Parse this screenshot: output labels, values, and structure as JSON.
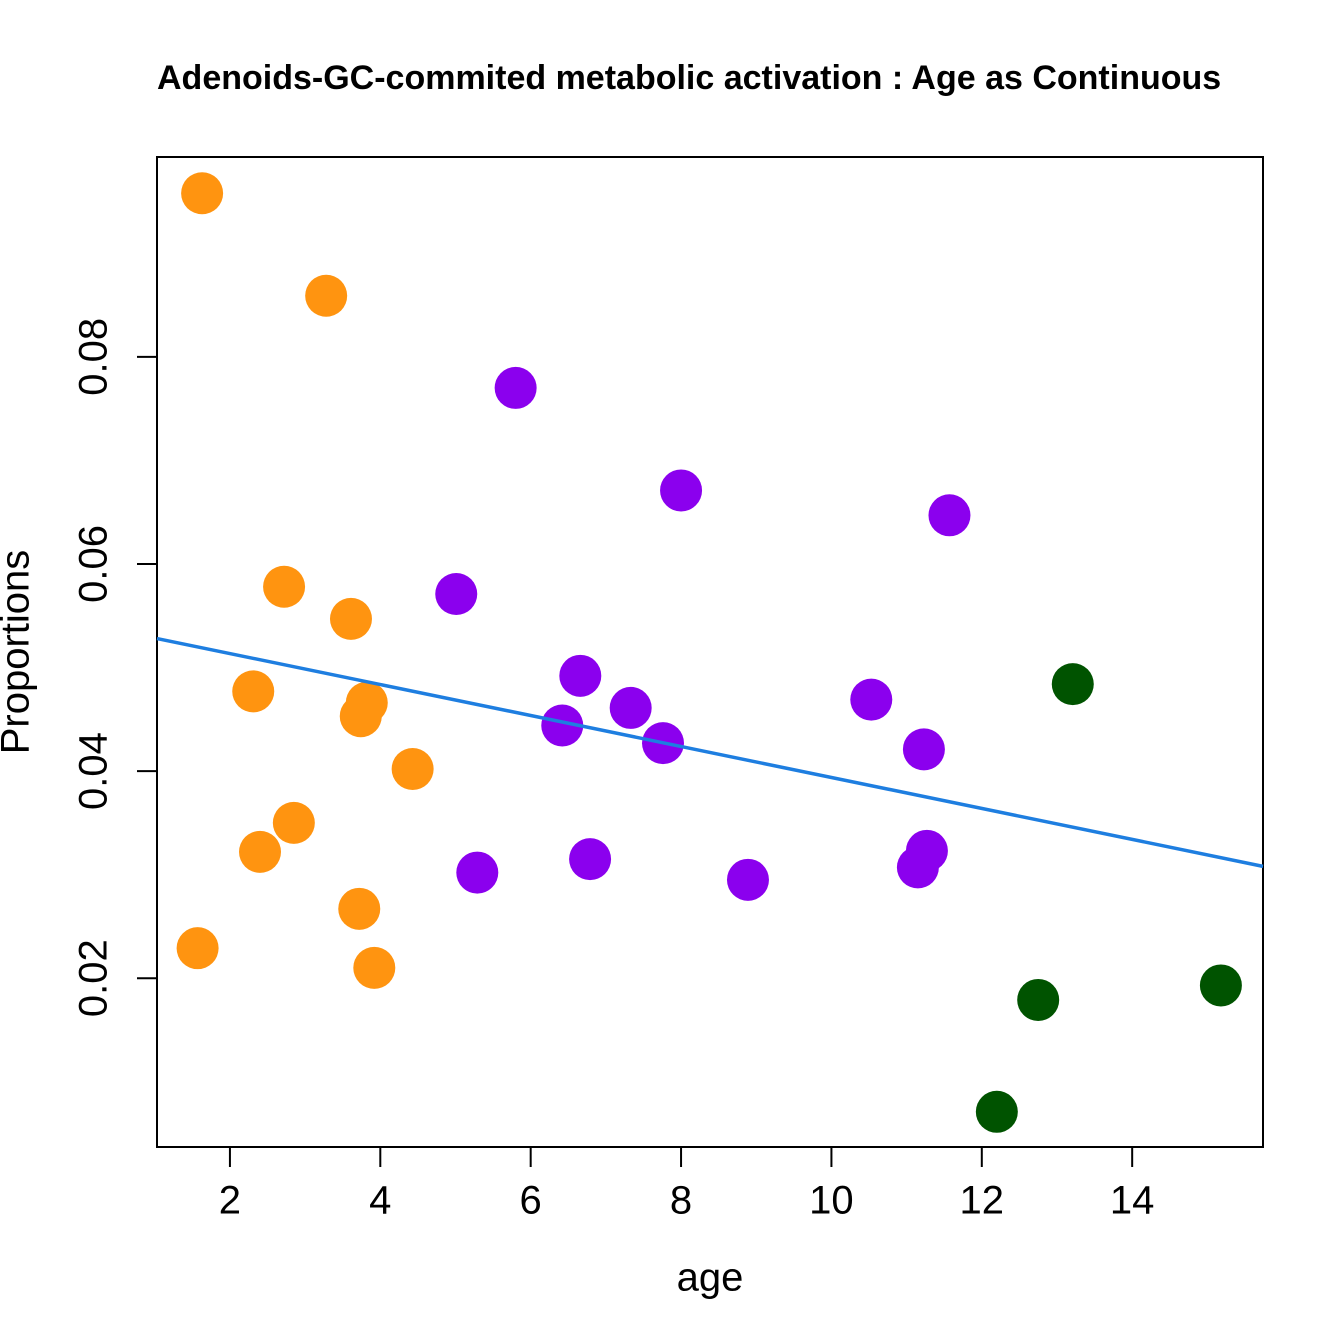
{
  "chart_data": {
    "type": "scatter",
    "title": "Adenoids-GC-commited metabolic activation : Age as Continuous",
    "x_label": "age",
    "y_label": "Proportions",
    "xlim": [
      1.03,
      15.74
    ],
    "ylim": [
      0.0037,
      0.0993
    ],
    "xticks": [
      2,
      4,
      6,
      8,
      10,
      12,
      14
    ],
    "yticks": [
      0.02,
      0.04,
      0.06,
      0.08
    ],
    "series": [
      {
        "color": "#ff9410",
        "x": [
          1.63,
          3.28,
          2.72,
          3.61,
          2.31,
          3.82,
          3.74,
          4.43,
          2.85,
          2.4,
          3.72,
          1.57,
          3.92
        ],
        "values": [
          0.0958,
          0.0859,
          0.0578,
          0.0547,
          0.0477,
          0.0466,
          0.0453,
          0.0402,
          0.035,
          0.0322,
          0.0267,
          0.0229,
          0.021
        ]
      },
      {
        "color": "#8b00ee",
        "x": [
          5.8,
          8.0,
          11.57,
          5.01,
          6.66,
          7.33,
          6.42,
          7.76,
          10.53,
          11.23,
          11.27,
          11.15,
          5.29,
          6.79,
          8.89
        ],
        "values": [
          0.077,
          0.0671,
          0.0647,
          0.0571,
          0.0492,
          0.0461,
          0.0444,
          0.0427,
          0.0469,
          0.0421,
          0.0323,
          0.0307,
          0.0302,
          0.0315,
          0.0295
        ]
      },
      {
        "color": "#005300",
        "x": [
          13.21,
          15.18,
          12.75,
          12.2
        ],
        "values": [
          0.0484,
          0.0193,
          0.0179,
          0.0071
        ]
      }
    ],
    "fit_line": {
      "color": "#1e7ee0",
      "x": [
        1.03,
        15.74
      ],
      "values": [
        0.0528,
        0.0308
      ]
    }
  }
}
